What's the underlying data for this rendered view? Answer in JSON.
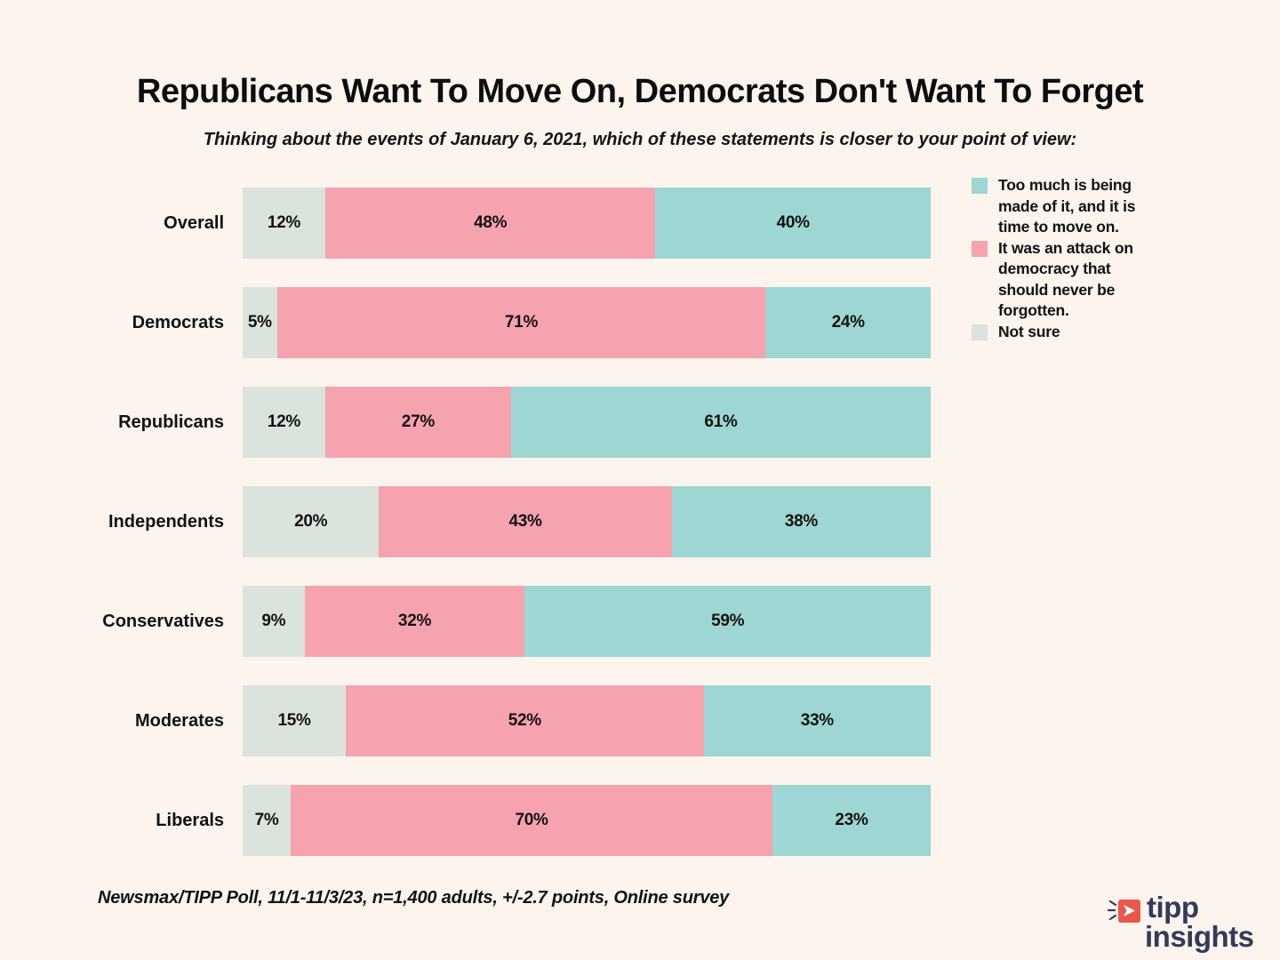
{
  "header": {
    "title": "Republicans Want To Move On, Democrats Don't Want To Forget",
    "subtitle": "Thinking about the events of January 6, 2021, which of these statements is closer to your point of view:"
  },
  "legend": {
    "items": [
      {
        "key": "move_on",
        "label": "Too much is being made of it, and it is time to move on.",
        "color": "#9dd6d2"
      },
      {
        "key": "attack",
        "label": "It was an attack on democracy that should never be forgotten.",
        "color": "#f7a2af"
      },
      {
        "key": "not_sure",
        "label": "Not sure",
        "color": "#dae3dc"
      }
    ]
  },
  "chart_data": {
    "type": "bar",
    "orientation": "horizontal-stacked",
    "title": "Republicans Want To Move On, Democrats Don't Want To Forget",
    "xlabel": "",
    "ylabel": "",
    "xlim": [
      0,
      100
    ],
    "value_suffix": "%",
    "grid": false,
    "legend_position": "right",
    "categories": [
      "Overall",
      "Democrats",
      "Republicans",
      "Independents",
      "Conservatives",
      "Moderates",
      "Liberals"
    ],
    "series": [
      {
        "key": "not_sure",
        "name": "Not sure",
        "color": "#dae3dc",
        "values": [
          12,
          5,
          12,
          20,
          9,
          15,
          7
        ]
      },
      {
        "key": "attack",
        "name": "It was an attack on democracy that should never be forgotten.",
        "color": "#f7a2af",
        "values": [
          48,
          71,
          27,
          43,
          32,
          52,
          70
        ]
      },
      {
        "key": "move_on",
        "name": "Too much is being made of it, and it is time to move on.",
        "color": "#9dd6d2",
        "values": [
          40,
          24,
          61,
          38,
          59,
          33,
          23
        ]
      }
    ]
  },
  "footer": {
    "source": "Newsmax/TIPP Poll, 11/1-11/3/23, n=1,400 adults, +/-2.7 points, Online survey"
  },
  "logo": {
    "line1": "tipp",
    "line2": "insights",
    "icon": "megaphone-arrow-icon",
    "icon_color": "#e9594a",
    "text_color": "#333a5b",
    "background": "#fdf4ed"
  }
}
